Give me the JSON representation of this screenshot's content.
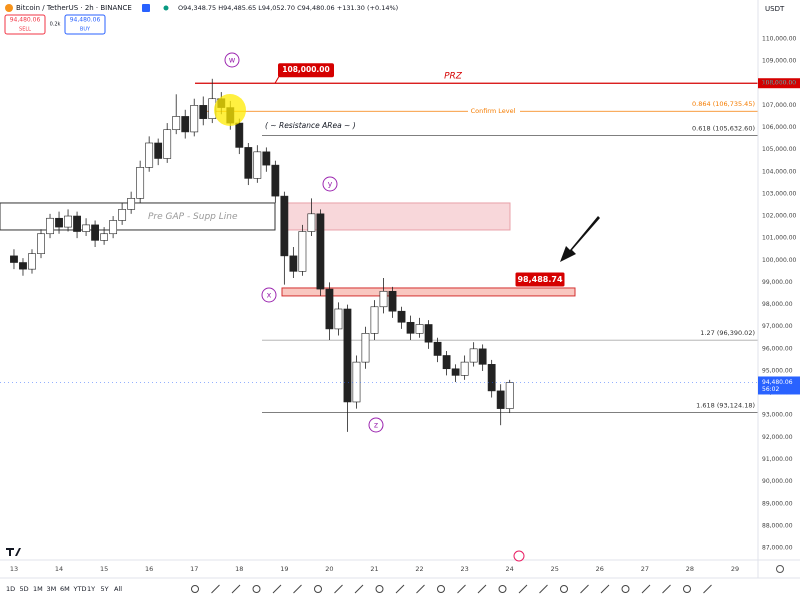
{
  "header": {
    "symbol": "Bitcoin / TetherUS · 2h · BINANCE",
    "ohlc": "O94,348.75 H94,485.65 L94,052.70 C94,480.06 +131.30 (+0.14%)",
    "sell_price": "94,480.06",
    "sell": "SELL",
    "spread": "0.2k",
    "buy_price": "94,480.06",
    "buy": "BUY",
    "currency": "USDT"
  },
  "toolbar": {
    "ranges": [
      "1D",
      "5D",
      "1M",
      "3M",
      "6M",
      "YTD",
      "1Y",
      "5Y",
      "All"
    ]
  },
  "chart_data": {
    "type": "candlestick",
    "x": [
      13.0,
      13.2,
      13.4,
      13.6,
      13.8,
      14.0,
      14.2,
      14.4,
      14.6,
      14.8,
      15.0,
      15.2,
      15.4,
      15.6,
      15.8,
      16.0,
      16.2,
      16.4,
      16.6,
      16.8,
      17.0,
      17.2,
      17.4,
      17.6,
      17.8,
      18.0,
      18.2,
      18.4,
      18.6,
      18.8,
      19.0,
      19.2,
      19.4,
      19.6,
      19.8,
      20.0,
      20.2,
      20.4,
      20.6,
      20.8,
      21.0,
      21.2,
      21.4,
      21.6,
      21.8,
      22.0,
      22.2,
      22.4,
      22.6,
      22.8,
      23.0,
      23.2,
      23.4,
      23.6,
      23.8,
      24.0
    ],
    "open": [
      100200,
      99900,
      99600,
      100300,
      101200,
      101900,
      101500,
      102000,
      101300,
      101600,
      100900,
      101200,
      101800,
      102300,
      102800,
      104200,
      105300,
      104600,
      105900,
      106500,
      105800,
      107000,
      106400,
      107300,
      106900,
      106200,
      105100,
      103700,
      104900,
      104300,
      102900,
      100200,
      99500,
      101300,
      102100,
      98700,
      96900,
      97800,
      93600,
      95400,
      96700,
      97900,
      98600,
      97700,
      97200,
      96700,
      97100,
      96300,
      95700,
      95100,
      94800,
      95400,
      96000,
      95300,
      94100,
      93300
    ],
    "high": [
      100500,
      100100,
      100500,
      101400,
      102100,
      102200,
      102300,
      102200,
      101900,
      101800,
      101500,
      102000,
      102600,
      103100,
      104500,
      105600,
      105500,
      106200,
      107500,
      106800,
      107300,
      107400,
      108200,
      107600,
      107200,
      106400,
      105300,
      105200,
      105100,
      104500,
      103100,
      100600,
      101600,
      102800,
      102300,
      99000,
      98100,
      98000,
      95700,
      97000,
      98200,
      99200,
      98800,
      97900,
      97500,
      97400,
      97300,
      96500,
      95900,
      95300,
      95700,
      96300,
      96200,
      95500,
      94400,
      94600
    ],
    "low": [
      99600,
      99300,
      99400,
      100100,
      101000,
      101200,
      101300,
      101000,
      101100,
      100600,
      100700,
      101000,
      101600,
      102100,
      102600,
      104000,
      104300,
      104400,
      105700,
      105500,
      105600,
      106100,
      106200,
      106600,
      105900,
      104800,
      103400,
      103500,
      104000,
      102600,
      98900,
      99200,
      99300,
      101100,
      98400,
      96400,
      96600,
      92250,
      93300,
      95100,
      96400,
      97600,
      97400,
      96900,
      96400,
      96500,
      96000,
      95400,
      94800,
      94500,
      94600,
      95200,
      95000,
      93800,
      92550,
      93100
    ],
    "close": [
      99900,
      99600,
      100300,
      101200,
      101900,
      101500,
      102000,
      101300,
      101600,
      100900,
      101200,
      101800,
      102300,
      102800,
      104200,
      105300,
      104600,
      105900,
      106500,
      105800,
      107000,
      106400,
      107300,
      106900,
      106200,
      105100,
      103700,
      104900,
      104300,
      102900,
      100200,
      99500,
      101300,
      102100,
      98700,
      96900,
      97800,
      93600,
      95400,
      96700,
      97900,
      98600,
      97700,
      97200,
      96700,
      97100,
      96300,
      95700,
      95100,
      94800,
      95400,
      96000,
      95300,
      94100,
      93300,
      94480.06
    ],
    "up_color": "#ffffff",
    "down_color": "#222222",
    "xlim": [
      12.69,
      29.51
    ],
    "xticks": [
      13,
      14,
      15,
      16,
      17,
      18,
      19,
      20,
      21,
      22,
      23,
      24,
      25,
      26,
      27,
      28,
      29
    ],
    "ylim": [
      86460,
      111760
    ],
    "yticks": [
      {
        "value": 87000,
        "label": "87,000.00"
      },
      {
        "value": 88000,
        "label": "88,000.00"
      },
      {
        "value": 89000,
        "label": "89,000.00"
      },
      {
        "value": 90000,
        "label": "90,000.00"
      },
      {
        "value": 91000,
        "label": "91,000.00"
      },
      {
        "value": 92000,
        "label": "92,000.00"
      },
      {
        "value": 93000,
        "label": "93,000.00"
      },
      {
        "value": 94000,
        "label": "94,000.00"
      },
      {
        "value": 95000,
        "label": "95,000.00"
      },
      {
        "value": 96000,
        "label": "96,000.00"
      },
      {
        "value": 97000,
        "label": "97,000.00"
      },
      {
        "value": 98000,
        "label": "98,000.00"
      },
      {
        "value": 99000,
        "label": "99,000.00"
      },
      {
        "value": 100000,
        "label": "100,000.00"
      },
      {
        "value": 101000,
        "label": "101,000.00"
      },
      {
        "value": 102000,
        "label": "102,000.00"
      },
      {
        "value": 103000,
        "label": "103,000.00"
      },
      {
        "value": 104000,
        "label": "104,000.00"
      },
      {
        "value": 105000,
        "label": "105,000.00"
      },
      {
        "value": 106000,
        "label": "106,000.00"
      },
      {
        "value": 107000,
        "label": "107,000.00"
      },
      {
        "value": 108000,
        "label": "108,000.00"
      },
      {
        "value": 109000,
        "label": "109,000.00"
      },
      {
        "value": 110000,
        "label": "110,000.00"
      }
    ],
    "grid": false,
    "levels": [
      {
        "name": "PRZ",
        "value": 108000,
        "label": "108,000.00",
        "color": "#d50000"
      },
      {
        "name": "Confirm Level",
        "value": 106735.45,
        "label": "0.864 (106,735.45)",
        "color": "#f57c00"
      },
      {
        "value": 105632.6,
        "label": "0.618 (105,632.60)",
        "color": "#555555"
      },
      {
        "value": 96390.02,
        "label": "1.27 (96,390.02)",
        "color": "#aaaaaa"
      },
      {
        "value": 93124.18,
        "label": "1.618 (93,124.18)",
        "color": "#555555"
      }
    ],
    "zones": [
      {
        "label": "Pre GAP - Supp Line",
        "low": 101370,
        "high": 102590
      },
      {
        "label": "98,488.74",
        "low": 98390,
        "high": 98750
      }
    ],
    "annotations": [
      "( ~ Resistance ARea ~ )",
      "w",
      "y",
      "x",
      "z"
    ],
    "last_price": {
      "value": 94480.06,
      "label": "94,480.06",
      "countdown": "56:02"
    }
  }
}
